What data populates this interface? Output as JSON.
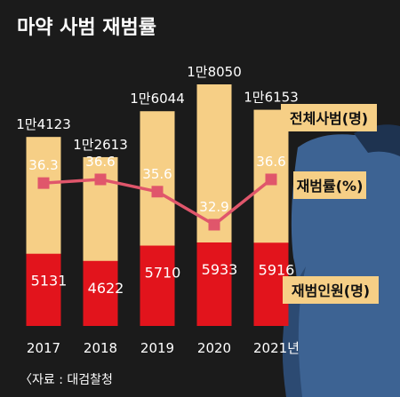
{
  "chart_data": {
    "type": "bar",
    "title": "마약 사범 재범률",
    "categories": [
      "2017",
      "2018",
      "2019",
      "2020",
      "2021년"
    ],
    "series": [
      {
        "name": "전체사범(명)",
        "kind": "bar",
        "values": [
          14123,
          12613,
          16044,
          18050,
          16153
        ],
        "labels": [
          "1만4123",
          "1만2613",
          "1만6044",
          "1만8050",
          "1만6153"
        ],
        "color": "#F6CF86"
      },
      {
        "name": "재범인원(명)",
        "kind": "bar",
        "values": [
          5131,
          4622,
          5710,
          5933,
          5916
        ],
        "labels": [
          "5131",
          "4622",
          "5710",
          "5933",
          "5916"
        ],
        "color": "#E2141C"
      },
      {
        "name": "재범률(%)",
        "kind": "line",
        "values": [
          36.3,
          36.6,
          35.6,
          32.9,
          36.6
        ],
        "labels": [
          "36.3",
          "36.6",
          "35.6",
          "32.9",
          "36.6"
        ],
        "color": "#E0566B"
      }
    ],
    "source": "〈자료 : 대검찰청"
  },
  "colors": {
    "background": "#1b1b1b",
    "title_text": "#ffffff",
    "axis_text": "#ffffff",
    "legend_box": "#F6CF86"
  }
}
